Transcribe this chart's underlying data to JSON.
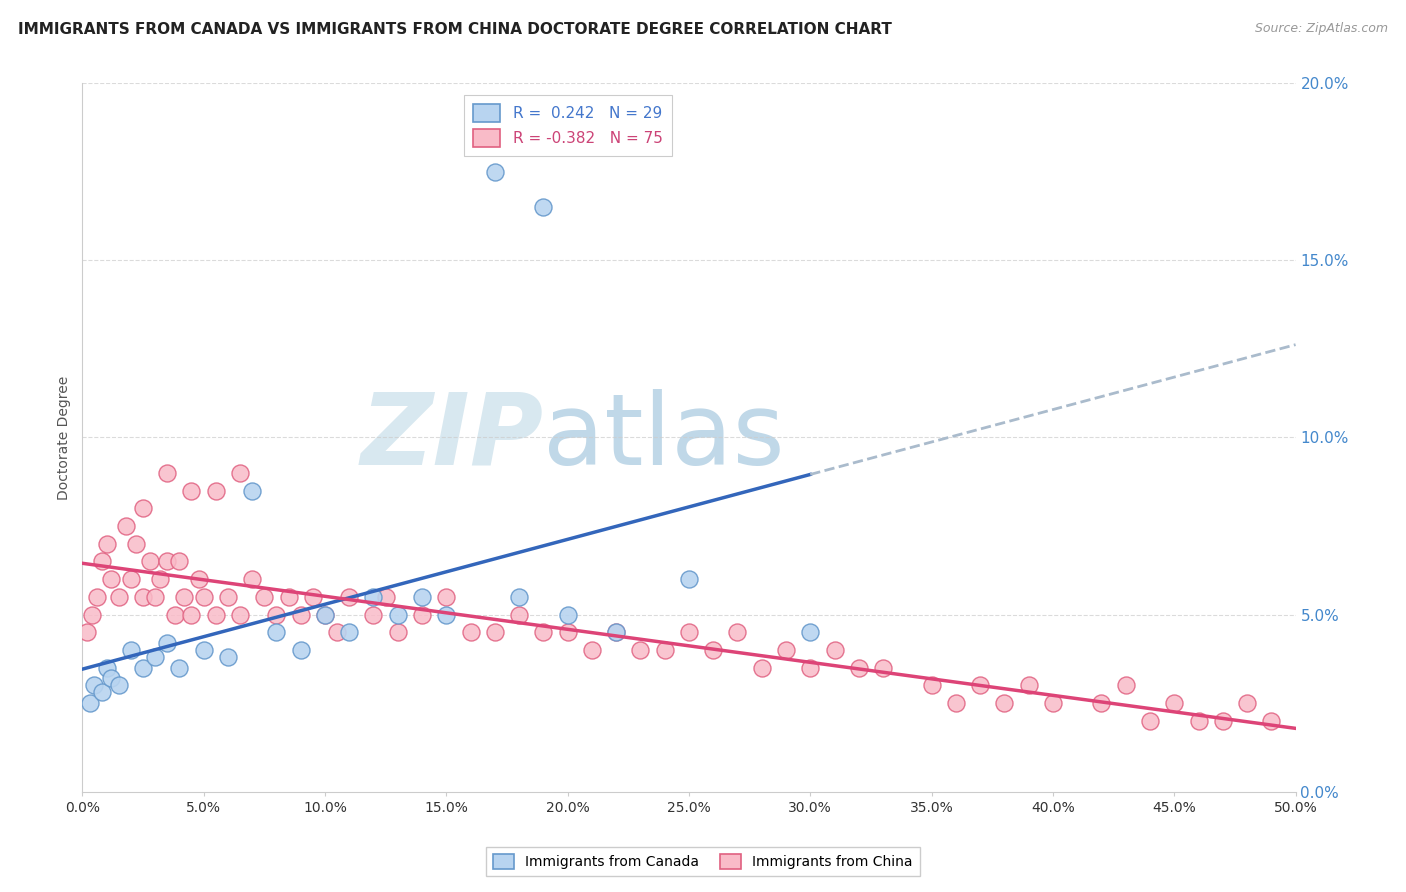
{
  "title": "IMMIGRANTS FROM CANADA VS IMMIGRANTS FROM CHINA DOCTORATE DEGREE CORRELATION CHART",
  "source": "Source: ZipAtlas.com",
  "ylabel": "Doctorate Degree",
  "legend_canada": "R =  0.242   N = 29",
  "legend_china": "R = -0.382   N = 75",
  "legend_label_canada": "Immigrants from Canada",
  "legend_label_china": "Immigrants from China",
  "r_canada": 0.242,
  "n_canada": 29,
  "r_china": -0.382,
  "n_china": 75,
  "color_canada_fill": "#b8d4f0",
  "color_canada_edge": "#6699cc",
  "color_china_fill": "#f9bbc8",
  "color_china_edge": "#e06080",
  "color_line_canada": "#3366bb",
  "color_line_china": "#dd4477",
  "color_line_canada_dash": "#aabbcc",
  "background_color": "#ffffff",
  "grid_color": "#cccccc",
  "xlim": [
    0,
    50
  ],
  "ylim": [
    0,
    20
  ],
  "xtick_values": [
    0,
    5,
    10,
    15,
    20,
    25,
    30,
    35,
    40,
    45,
    50
  ],
  "ytick_right_values": [
    0,
    5,
    10,
    15,
    20
  ],
  "canada_x": [
    0.3,
    0.5,
    0.8,
    1.0,
    1.2,
    1.5,
    2.0,
    2.5,
    3.0,
    3.5,
    4.0,
    5.0,
    6.0,
    7.0,
    8.0,
    9.0,
    10.0,
    11.0,
    12.0,
    13.0,
    14.0,
    15.0,
    18.0,
    20.0,
    22.0,
    25.0,
    30.0,
    17.0,
    19.0
  ],
  "canada_y": [
    2.5,
    3.0,
    2.8,
    3.5,
    3.2,
    3.0,
    4.0,
    3.5,
    3.8,
    4.2,
    3.5,
    4.0,
    3.8,
    8.5,
    4.5,
    4.0,
    5.0,
    4.5,
    5.5,
    5.0,
    5.5,
    5.0,
    5.5,
    5.0,
    4.5,
    6.0,
    4.5,
    17.5,
    16.5
  ],
  "china_x": [
    0.2,
    0.4,
    0.6,
    0.8,
    1.0,
    1.2,
    1.5,
    1.8,
    2.0,
    2.2,
    2.5,
    2.8,
    3.0,
    3.2,
    3.5,
    3.8,
    4.0,
    4.2,
    4.5,
    4.8,
    5.0,
    5.5,
    6.0,
    6.5,
    7.0,
    7.5,
    8.0,
    8.5,
    9.0,
    9.5,
    10.0,
    10.5,
    11.0,
    12.0,
    12.5,
    13.0,
    14.0,
    15.0,
    16.0,
    17.0,
    18.0,
    19.0,
    20.0,
    21.0,
    22.0,
    23.0,
    24.0,
    25.0,
    26.0,
    27.0,
    28.0,
    29.0,
    30.0,
    31.0,
    32.0,
    33.0,
    35.0,
    36.0,
    37.0,
    38.0,
    39.0,
    40.0,
    42.0,
    43.0,
    44.0,
    45.0,
    46.0,
    47.0,
    48.0,
    49.0,
    2.5,
    3.5,
    4.5,
    5.5,
    6.5
  ],
  "china_y": [
    4.5,
    5.0,
    5.5,
    6.5,
    7.0,
    6.0,
    5.5,
    7.5,
    6.0,
    7.0,
    5.5,
    6.5,
    5.5,
    6.0,
    6.5,
    5.0,
    6.5,
    5.5,
    5.0,
    6.0,
    5.5,
    5.0,
    5.5,
    5.0,
    6.0,
    5.5,
    5.0,
    5.5,
    5.0,
    5.5,
    5.0,
    4.5,
    5.5,
    5.0,
    5.5,
    4.5,
    5.0,
    5.5,
    4.5,
    4.5,
    5.0,
    4.5,
    4.5,
    4.0,
    4.5,
    4.0,
    4.0,
    4.5,
    4.0,
    4.5,
    3.5,
    4.0,
    3.5,
    4.0,
    3.5,
    3.5,
    3.0,
    2.5,
    3.0,
    2.5,
    3.0,
    2.5,
    2.5,
    3.0,
    2.0,
    2.5,
    2.0,
    2.0,
    2.5,
    2.0,
    8.0,
    9.0,
    8.5,
    8.5,
    9.0
  ],
  "watermark_zip_color": "#d8e8f0",
  "watermark_atlas_color": "#c0d8e8"
}
